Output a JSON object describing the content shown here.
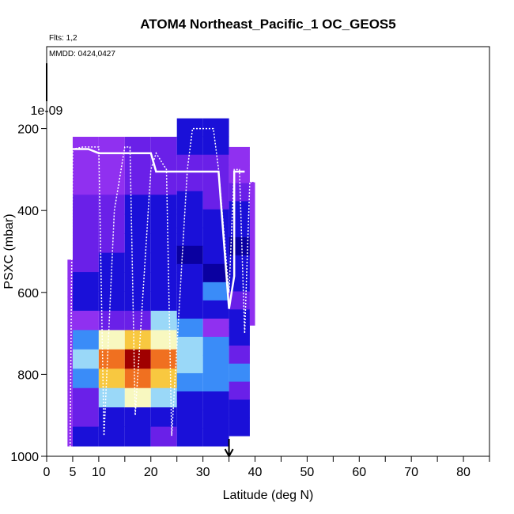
{
  "chart_data": {
    "type": "heatmap",
    "title": "ATOM4 Northeast_Pacific_1 OC_GEOS5",
    "flights_note": "Flts: 1,2",
    "dates_note": "MMDD: 0424,0427",
    "xlabel": "Latitude (deg N)",
    "ylabel": "PSXC (mbar)",
    "xlim": [
      0,
      85
    ],
    "ylim": [
      1000,
      0
    ],
    "x_ticks": [
      0,
      5,
      10,
      20,
      30,
      40,
      50,
      60,
      70,
      80
    ],
    "x_minor_ticks": [
      15,
      25,
      35,
      45,
      55,
      65,
      75,
      85
    ],
    "y_ticks": [
      200,
      400,
      600,
      800,
      1000
    ],
    "y_extra_label": "1e-09",
    "marker_latitude": 35,
    "grid": false,
    "columns": [
      {
        "lat": [
          4,
          5
        ],
        "top": 520,
        "bottom": 975,
        "profile": [
          3,
          3,
          3,
          3,
          3,
          3,
          3,
          3,
          3,
          3
        ]
      },
      {
        "lat": [
          5,
          10
        ],
        "top": 220,
        "bottom": 975,
        "profile": [
          3,
          3,
          3,
          2,
          2,
          2,
          2,
          1,
          1,
          3,
          4,
          5,
          4,
          2,
          2,
          1
        ]
      },
      {
        "lat": [
          10,
          15
        ],
        "top": 220,
        "bottom": 975,
        "profile": [
          3,
          3,
          3,
          2,
          2,
          2,
          1,
          1,
          1,
          2,
          6,
          8,
          7,
          5,
          1,
          1
        ]
      },
      {
        "lat": [
          15,
          20
        ],
        "top": 220,
        "bottom": 975,
        "profile": [
          2,
          2,
          2,
          1,
          1,
          1,
          1,
          1,
          1,
          2,
          7,
          10,
          8,
          6,
          1,
          1
        ]
      },
      {
        "lat": [
          20,
          25
        ],
        "top": 220,
        "bottom": 975,
        "profile": [
          2,
          2,
          2,
          1,
          1,
          1,
          1,
          1,
          1,
          5,
          6,
          8,
          7,
          5,
          1,
          2
        ]
      },
      {
        "lat": [
          25,
          30
        ],
        "top": 175,
        "bottom": 975,
        "profile": [
          1,
          1,
          2,
          2,
          1,
          1,
          1,
          0,
          1,
          1,
          1,
          4,
          5,
          5,
          4,
          1,
          1,
          1
        ]
      },
      {
        "lat": [
          30,
          35
        ],
        "top": 175,
        "bottom": 975,
        "profile": [
          1,
          1,
          2,
          2,
          2,
          1,
          1,
          1,
          0,
          4,
          1,
          3,
          4,
          4,
          4,
          1,
          1,
          1
        ]
      },
      {
        "lat": [
          35,
          39
        ],
        "top": 245,
        "bottom": 950,
        "profile": [
          3,
          3,
          2,
          1,
          1,
          0,
          1,
          1,
          2,
          1,
          1,
          2,
          4,
          2,
          1,
          1
        ]
      },
      {
        "lat": [
          39,
          40
        ],
        "top": 330,
        "bottom": 680,
        "profile": [
          3,
          3,
          3,
          3,
          3,
          3,
          3
        ]
      }
    ],
    "series": [
      {
        "type": "flight-track",
        "points": [
          [
            4.5,
            1000
          ],
          [
            5,
            250
          ],
          [
            7,
            245
          ],
          [
            10,
            245
          ],
          [
            11,
            950
          ],
          [
            13,
            400
          ],
          [
            15,
            245
          ],
          [
            16,
            245
          ],
          [
            17,
            900
          ],
          [
            20,
            300
          ],
          [
            21,
            260
          ],
          [
            23,
            300
          ],
          [
            24,
            950
          ],
          [
            27,
            300
          ],
          [
            28,
            200
          ],
          [
            32,
            200
          ],
          [
            33,
            300
          ],
          [
            35,
            600
          ],
          [
            36,
            300
          ],
          [
            37,
            300
          ],
          [
            38,
            700
          ],
          [
            39,
            330
          ],
          [
            40,
            330
          ]
        ]
      },
      {
        "type": "flight-track",
        "points": [
          [
            5,
            250
          ],
          [
            8,
            250
          ],
          [
            10,
            260
          ],
          [
            20,
            260
          ],
          [
            21,
            305
          ],
          [
            33,
            305
          ],
          [
            35,
            640
          ],
          [
            36,
            560
          ],
          [
            36,
            305
          ],
          [
            38,
            305
          ]
        ]
      }
    ]
  }
}
